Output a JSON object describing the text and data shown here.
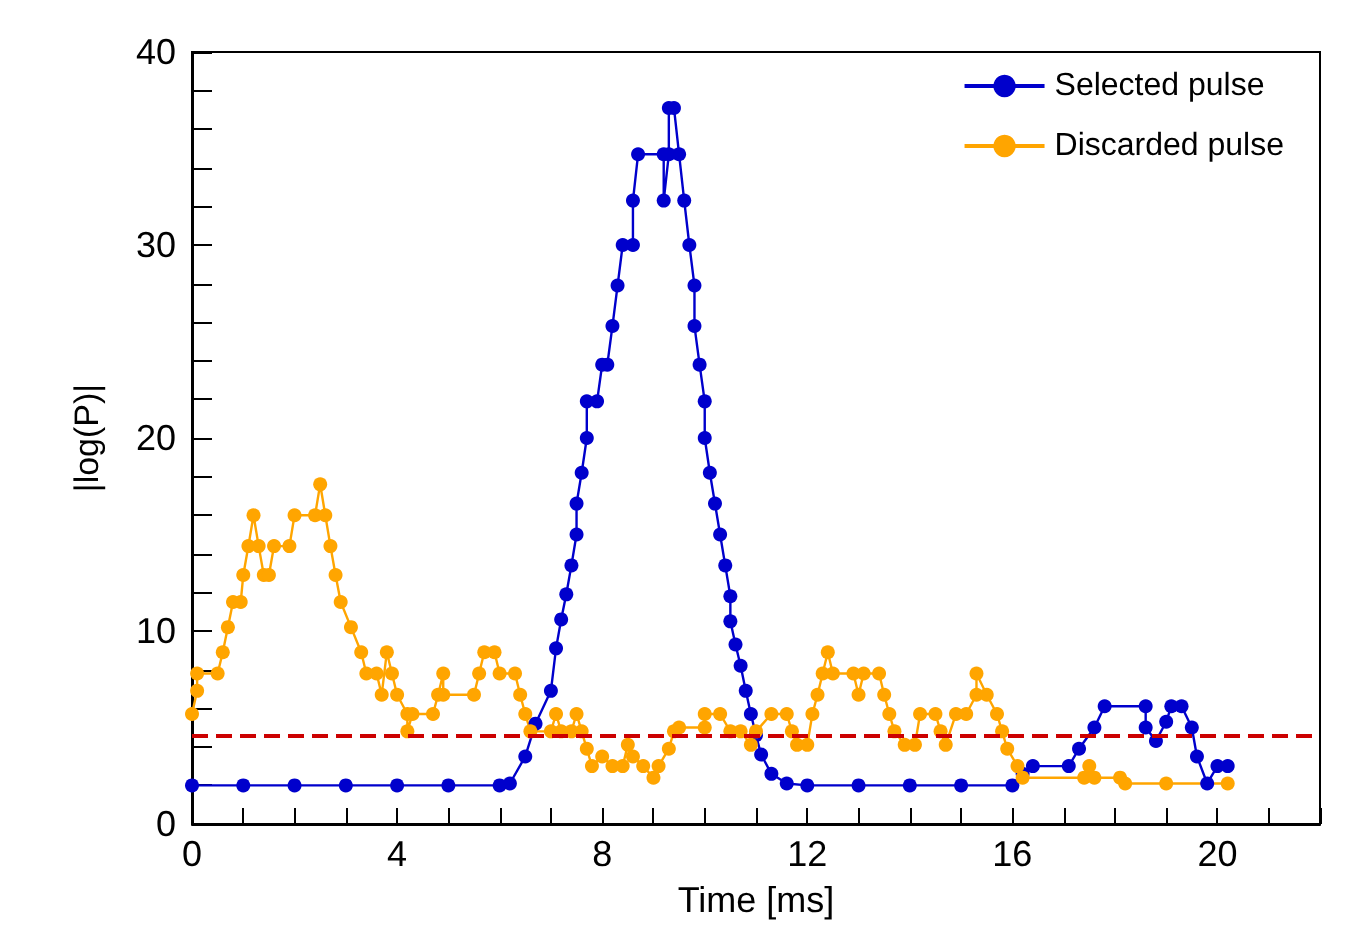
{
  "chart_data": {
    "type": "line",
    "xlabel": "Time [ms]",
    "ylabel": "|log(P)|",
    "xlim": [
      0,
      22
    ],
    "xticks": [
      0,
      {
        "value": 1,
        "label": null
      },
      {
        "value": 2,
        "label": null
      },
      {
        "value": 3,
        "label": null
      },
      4,
      {
        "value": 5,
        "label": null
      },
      {
        "value": 6,
        "label": null
      },
      {
        "value": 7,
        "label": null
      },
      8,
      {
        "value": 9,
        "label": null
      },
      {
        "value": 10,
        "label": null
      },
      {
        "value": 11,
        "label": null
      },
      12,
      {
        "value": 13,
        "label": null
      },
      {
        "value": 14,
        "label": null
      },
      {
        "value": 15,
        "label": null
      },
      16,
      {
        "value": 17,
        "label": null
      },
      {
        "value": 18,
        "label": null
      },
      {
        "value": 19,
        "label": null
      },
      20,
      {
        "value": 21,
        "label": null
      },
      {
        "value": 22,
        "label": null
      }
    ],
    "ylim": [
      0,
      40
    ],
    "yticks": [
      0,
      {
        "value": 2,
        "label": null
      },
      {
        "value": 4,
        "label": null
      },
      {
        "value": 6,
        "label": null
      },
      {
        "value": 8,
        "label": null
      },
      10,
      {
        "value": 12,
        "label": null
      },
      {
        "value": 14,
        "label": null
      },
      {
        "value": 16,
        "label": null
      },
      {
        "value": 18,
        "label": null
      },
      20,
      {
        "value": 22,
        "label": null
      },
      {
        "value": 24,
        "label": null
      },
      {
        "value": 26,
        "label": null
      },
      {
        "value": 28,
        "label": null
      },
      30,
      {
        "value": 32,
        "label": null
      },
      {
        "value": 34,
        "label": null
      },
      {
        "value": 36,
        "label": null
      },
      {
        "value": 38,
        "label": null
      },
      40
    ],
    "grid": false,
    "legend": "top right",
    "marker": "circle",
    "line_style": "solid",
    "series": [
      {
        "name": "Selected pulse",
        "color": "#0000cc",
        "x": [
          0,
          1,
          2,
          3,
          4,
          5,
          6,
          6.2,
          6.5,
          6.7,
          7.0,
          7.1,
          7.2,
          7.3,
          7.4,
          7.5,
          7.5,
          7.6,
          7.7,
          7.7,
          7.9,
          8.0,
          8.1,
          8.2,
          8.3,
          8.4,
          8.6,
          8.6,
          8.7,
          9.2,
          9.2,
          9.3,
          9.3,
          9.4,
          9.5,
          9.6,
          9.7,
          9.8,
          9.8,
          9.9,
          10.0,
          10.0,
          10.1,
          10.2,
          10.3,
          10.4,
          10.5,
          10.5,
          10.6,
          10.7,
          10.8,
          10.9,
          11.0,
          11.1,
          11.3,
          11.6,
          12,
          13,
          14,
          15,
          16.0,
          16.2,
          16.4,
          17.1,
          17.3,
          17.6,
          17.8,
          18.6,
          18.6,
          18.8,
          19.0,
          19.1,
          19.3,
          19.5,
          19.6,
          19.8,
          20.0,
          20.2
        ],
        "values": [
          2,
          2,
          2,
          2,
          2,
          2,
          2,
          2.1,
          3.5,
          5.2,
          6.9,
          9.1,
          10.6,
          11.9,
          13.4,
          15,
          16.6,
          18.2,
          20,
          21.9,
          21.9,
          23.8,
          23.8,
          25.8,
          27.9,
          30,
          30,
          32.3,
          34.7,
          34.7,
          32.3,
          34.7,
          37.1,
          37.1,
          34.7,
          32.3,
          30,
          27.9,
          25.8,
          23.8,
          21.9,
          20,
          18.2,
          16.6,
          15,
          13.4,
          11.8,
          10.5,
          9.3,
          8.2,
          6.9,
          5.7,
          4.6,
          3.6,
          2.6,
          2.1,
          2,
          2,
          2,
          2,
          2,
          2.6,
          3,
          3,
          3.9,
          5,
          6.1,
          6.1,
          5,
          4.3,
          5.3,
          6.1,
          6.1,
          5,
          3.5,
          2.1,
          3,
          3
        ]
      },
      {
        "name": "Discarded pulse",
        "color": "#ffa500",
        "x": [
          0,
          0.1,
          0.1,
          0.5,
          0.6,
          0.7,
          0.8,
          0.95,
          1.0,
          1.1,
          1.2,
          1.3,
          1.4,
          1.5,
          1.6,
          1.9,
          2.0,
          2.4,
          2.5,
          2.6,
          2.7,
          2.8,
          2.9,
          3.1,
          3.3,
          3.4,
          3.6,
          3.7,
          3.8,
          3.9,
          4.0,
          4.2,
          4.2,
          4.3,
          4.7,
          4.8,
          4.9,
          4.9,
          5.5,
          5.6,
          5.7,
          5.9,
          6.0,
          6.3,
          6.4,
          6.5,
          6.6,
          7.0,
          7.1,
          7.2,
          7.4,
          7.5,
          7.6,
          7.7,
          7.8,
          8.0,
          8.2,
          8.4,
          8.5,
          8.6,
          8.8,
          9.0,
          9.1,
          9.3,
          9.4,
          9.5,
          10.0,
          10.0,
          10.3,
          10.5,
          10.7,
          10.9,
          11.0,
          11.3,
          11.6,
          11.7,
          11.8,
          12.0,
          12.1,
          12.2,
          12.3,
          12.4,
          12.5,
          12.9,
          13.0,
          13.1,
          13.4,
          13.5,
          13.6,
          13.7,
          13.9,
          14.1,
          14.2,
          14.5,
          14.6,
          14.7,
          14.9,
          15.1,
          15.3,
          15.3,
          15.5,
          15.7,
          15.8,
          15.9,
          16.1,
          16.2,
          17.4,
          17.5,
          17.6,
          18.1,
          18.2,
          19,
          20.2
        ],
        "values": [
          5.7,
          6.9,
          7.8,
          7.8,
          8.9,
          10.2,
          11.5,
          11.5,
          12.9,
          14.4,
          16,
          14.4,
          12.9,
          12.9,
          14.4,
          14.4,
          16,
          16,
          17.6,
          16,
          14.4,
          12.9,
          11.5,
          10.2,
          8.9,
          7.8,
          7.8,
          6.7,
          8.9,
          7.8,
          6.7,
          5.7,
          4.8,
          5.7,
          5.7,
          6.7,
          7.8,
          6.7,
          6.7,
          7.8,
          8.9,
          8.9,
          7.8,
          7.8,
          6.7,
          5.7,
          4.8,
          4.8,
          5.7,
          4.8,
          4.8,
          5.7,
          4.8,
          3.9,
          3,
          3.5,
          3,
          3,
          4.1,
          3.5,
          3,
          2.4,
          3,
          3.9,
          4.8,
          5,
          5,
          5.7,
          5.7,
          4.8,
          4.8,
          4.1,
          4.8,
          5.7,
          5.7,
          4.8,
          4.1,
          4.1,
          5.7,
          6.7,
          7.8,
          8.9,
          7.8,
          7.8,
          6.7,
          7.8,
          7.8,
          6.7,
          5.7,
          4.8,
          4.1,
          4.1,
          5.7,
          5.7,
          4.8,
          4.1,
          5.7,
          5.7,
          6.7,
          7.8,
          6.7,
          5.7,
          4.8,
          3.9,
          3,
          2.4,
          2.4,
          3,
          2.4,
          2.4,
          2.1,
          2.1,
          2.1
        ]
      }
    ],
    "ref_lines": [
      {
        "axis": "y",
        "value": 4.6,
        "color": "#cc0000",
        "line_style": "dashed"
      }
    ]
  }
}
